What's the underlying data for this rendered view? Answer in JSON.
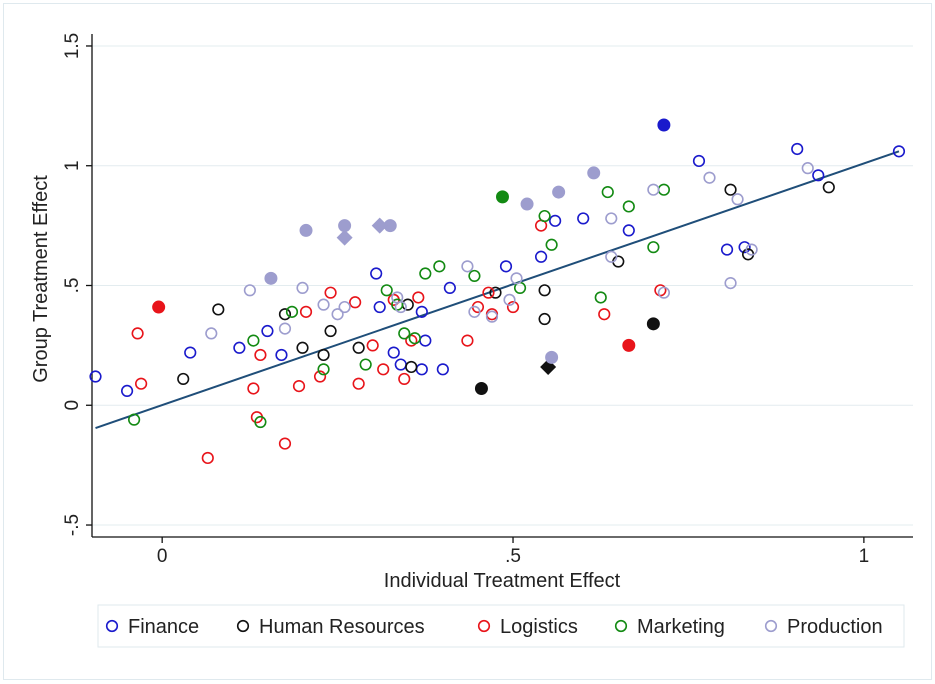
{
  "chart_data": {
    "type": "scatter",
    "title": "",
    "xlabel": "Individual Treatment Effect",
    "ylabel": "Group Treatment Effect",
    "xlim": [
      -0.1,
      1.07
    ],
    "ylim": [
      -0.55,
      1.55
    ],
    "x_ticks": [
      {
        "value": 0,
        "label": "0"
      },
      {
        "value": 0.5,
        "label": ".5"
      },
      {
        "value": 1,
        "label": "1"
      }
    ],
    "y_ticks": [
      {
        "value": -0.5,
        "label": "-.5"
      },
      {
        "value": 0,
        "label": "0"
      },
      {
        "value": 0.5,
        "label": ".5"
      },
      {
        "value": 1,
        "label": "1"
      },
      {
        "value": 1.5,
        "label": "1.5"
      }
    ],
    "grid": "horizontal",
    "legend_position": "bottom",
    "fit_line": {
      "x": [
        -0.095,
        1.05
      ],
      "y": [
        -0.095,
        1.06
      ],
      "color": "#1f4e79"
    },
    "series": [
      {
        "name": "Finance",
        "color": "#1a1acc",
        "points": [
          [
            -0.095,
            0.12
          ],
          [
            -0.05,
            0.06
          ],
          [
            0.04,
            0.22
          ],
          [
            0.11,
            0.24
          ],
          [
            0.15,
            0.31
          ],
          [
            0.17,
            0.21
          ],
          [
            0.305,
            0.55
          ],
          [
            0.31,
            0.41
          ],
          [
            0.33,
            0.22
          ],
          [
            0.34,
            0.17
          ],
          [
            0.37,
            0.15
          ],
          [
            0.375,
            0.27
          ],
          [
            0.37,
            0.39
          ],
          [
            0.4,
            0.15
          ],
          [
            0.41,
            0.49
          ],
          [
            0.49,
            0.58
          ],
          [
            0.54,
            0.62
          ],
          [
            0.56,
            0.77
          ],
          [
            0.6,
            0.78
          ],
          [
            0.665,
            0.73
          ],
          [
            0.765,
            1.02
          ],
          [
            0.805,
            0.65
          ],
          [
            0.83,
            0.66
          ],
          [
            0.905,
            1.07
          ],
          [
            0.935,
            0.96
          ],
          [
            1.05,
            1.06
          ]
        ],
        "filled": [
          [
            0.715,
            1.17
          ]
        ]
      },
      {
        "name": "Human Resources",
        "color": "#111111",
        "points": [
          [
            0.03,
            0.11
          ],
          [
            0.08,
            0.4
          ],
          [
            0.175,
            0.38
          ],
          [
            0.2,
            0.24
          ],
          [
            0.23,
            0.21
          ],
          [
            0.24,
            0.31
          ],
          [
            0.28,
            0.24
          ],
          [
            0.35,
            0.42
          ],
          [
            0.355,
            0.16
          ],
          [
            0.475,
            0.47
          ],
          [
            0.545,
            0.48
          ],
          [
            0.545,
            0.36
          ],
          [
            0.65,
            0.6
          ],
          [
            0.81,
            0.9
          ],
          [
            0.835,
            0.63
          ],
          [
            0.95,
            0.91
          ]
        ],
        "filled": [
          [
            0.455,
            0.07
          ],
          [
            0.7,
            0.34
          ]
        ],
        "diamonds": [
          [
            0.55,
            0.16
          ]
        ]
      },
      {
        "name": "Logistics",
        "color": "#e8141a",
        "points": [
          [
            -0.035,
            0.3
          ],
          [
            -0.03,
            0.09
          ],
          [
            0.065,
            -0.22
          ],
          [
            0.13,
            0.07
          ],
          [
            0.135,
            -0.05
          ],
          [
            0.14,
            0.21
          ],
          [
            0.175,
            -0.16
          ],
          [
            0.195,
            0.08
          ],
          [
            0.205,
            0.39
          ],
          [
            0.225,
            0.12
          ],
          [
            0.24,
            0.47
          ],
          [
            0.275,
            0.43
          ],
          [
            0.28,
            0.09
          ],
          [
            0.3,
            0.25
          ],
          [
            0.315,
            0.15
          ],
          [
            0.33,
            0.44
          ],
          [
            0.345,
            0.11
          ],
          [
            0.355,
            0.27
          ],
          [
            0.365,
            0.45
          ],
          [
            0.435,
            0.27
          ],
          [
            0.45,
            0.41
          ],
          [
            0.465,
            0.47
          ],
          [
            0.47,
            0.38
          ],
          [
            0.5,
            0.41
          ],
          [
            0.54,
            0.75
          ],
          [
            0.63,
            0.38
          ],
          [
            0.71,
            0.48
          ]
        ],
        "filled": [
          [
            -0.005,
            0.41
          ],
          [
            0.665,
            0.25
          ]
        ]
      },
      {
        "name": "Marketing",
        "color": "#138a13",
        "points": [
          [
            -0.04,
            -0.06
          ],
          [
            0.13,
            0.27
          ],
          [
            0.14,
            -0.07
          ],
          [
            0.185,
            0.39
          ],
          [
            0.23,
            0.15
          ],
          [
            0.29,
            0.17
          ],
          [
            0.32,
            0.48
          ],
          [
            0.335,
            0.42
          ],
          [
            0.345,
            0.3
          ],
          [
            0.36,
            0.28
          ],
          [
            0.375,
            0.55
          ],
          [
            0.395,
            0.58
          ],
          [
            0.445,
            0.54
          ],
          [
            0.51,
            0.49
          ],
          [
            0.545,
            0.79
          ],
          [
            0.555,
            0.67
          ],
          [
            0.625,
            0.45
          ],
          [
            0.635,
            0.89
          ],
          [
            0.665,
            0.83
          ],
          [
            0.7,
            0.66
          ],
          [
            0.715,
            0.9
          ]
        ],
        "filled": [
          [
            0.485,
            0.87
          ]
        ]
      },
      {
        "name": "Production",
        "color": "#9d9dce",
        "points": [
          [
            0.07,
            0.3
          ],
          [
            0.125,
            0.48
          ],
          [
            0.175,
            0.32
          ],
          [
            0.2,
            0.49
          ],
          [
            0.23,
            0.42
          ],
          [
            0.25,
            0.38
          ],
          [
            0.26,
            0.41
          ],
          [
            0.335,
            0.45
          ],
          [
            0.34,
            0.41
          ],
          [
            0.435,
            0.58
          ],
          [
            0.445,
            0.39
          ],
          [
            0.47,
            0.37
          ],
          [
            0.495,
            0.44
          ],
          [
            0.505,
            0.53
          ],
          [
            0.64,
            0.78
          ],
          [
            0.64,
            0.62
          ],
          [
            0.7,
            0.9
          ],
          [
            0.715,
            0.47
          ],
          [
            0.78,
            0.95
          ],
          [
            0.81,
            0.51
          ],
          [
            0.82,
            0.86
          ],
          [
            0.84,
            0.65
          ],
          [
            0.92,
            0.99
          ]
        ],
        "filled": [
          [
            0.155,
            0.53
          ],
          [
            0.205,
            0.73
          ],
          [
            0.26,
            0.75
          ],
          [
            0.325,
            0.75
          ],
          [
            0.52,
            0.84
          ],
          [
            0.565,
            0.89
          ],
          [
            0.615,
            0.97
          ],
          [
            0.555,
            0.2
          ]
        ],
        "diamonds": [
          [
            0.26,
            0.7
          ],
          [
            0.31,
            0.75
          ]
        ]
      }
    ]
  }
}
